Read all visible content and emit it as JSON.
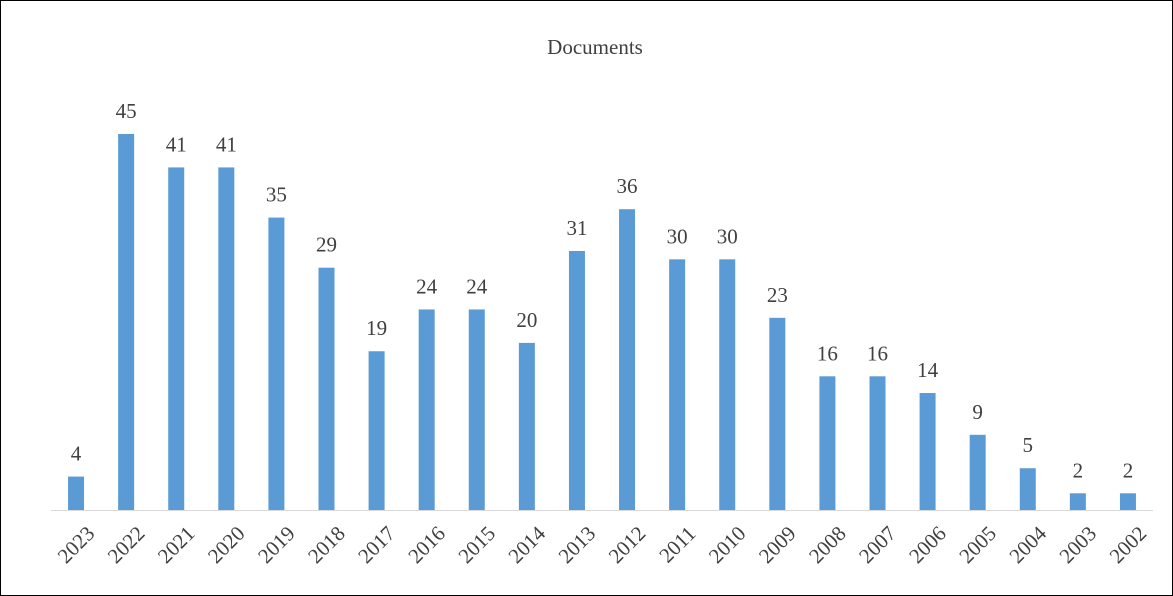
{
  "chart_data": {
    "type": "bar",
    "title": "Documents",
    "categories": [
      "2023",
      "2022",
      "2021",
      "2020",
      "2019",
      "2018",
      "2017",
      "2016",
      "2015",
      "2014",
      "2013",
      "2012",
      "2011",
      "2010",
      "2009",
      "2008",
      "2007",
      "2006",
      "2005",
      "2004",
      "2003",
      "2002"
    ],
    "values": [
      4,
      45,
      41,
      41,
      35,
      29,
      19,
      24,
      24,
      20,
      31,
      36,
      30,
      30,
      23,
      16,
      16,
      14,
      9,
      5,
      2,
      2
    ],
    "color": "#5b9bd5"
  }
}
